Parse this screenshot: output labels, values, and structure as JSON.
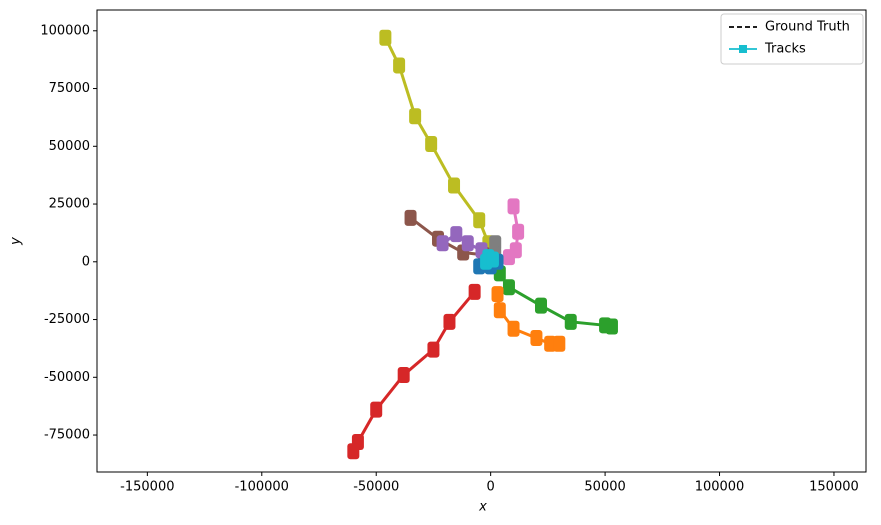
{
  "chart_data": {
    "type": "line",
    "xlabel": "x",
    "ylabel": "y",
    "xlim": [
      -172000,
      164000
    ],
    "ylim": [
      -91000,
      109000
    ],
    "xticks": [
      -150000,
      -100000,
      -50000,
      0,
      50000,
      100000,
      150000
    ],
    "yticks": [
      -75000,
      -50000,
      -25000,
      0,
      25000,
      50000,
      75000,
      100000
    ],
    "legend_position": "upper right",
    "legend": [
      {
        "name": "Ground Truth",
        "color": "#000000",
        "style": "dashed"
      },
      {
        "name": "Tracks",
        "color": "#17becf",
        "marker": "square"
      }
    ],
    "series": [
      {
        "color": "#bcbd22",
        "x": [
          -46000,
          -40000,
          -33000,
          -26000,
          -16000,
          -5000,
          -1000,
          0
        ],
        "values": [
          97000,
          85000,
          63000,
          51000,
          33000,
          18000,
          8000,
          0
        ]
      },
      {
        "color": "#d62728",
        "x": [
          -7000,
          -18000,
          -25000,
          -38000,
          -50000,
          -58000,
          -60000
        ],
        "values": [
          -13000,
          -26000,
          -38000,
          -49000,
          -64000,
          -78000,
          -82000
        ]
      },
      {
        "color": "#2ca02c",
        "x": [
          4000,
          8000,
          22000,
          35000,
          50000,
          53000
        ],
        "values": [
          -5000,
          -11000,
          -19000,
          -26000,
          -27500,
          -28000
        ]
      },
      {
        "color": "#ff7f0e",
        "x": [
          3000,
          4000,
          10000,
          20000,
          26000,
          30000
        ],
        "values": [
          -14000,
          -21000,
          -29000,
          -33000,
          -35500,
          -35500
        ]
      },
      {
        "color": "#e377c2",
        "x": [
          10000,
          12000,
          11000,
          8000
        ],
        "values": [
          24000,
          13000,
          5000,
          2000
        ]
      },
      {
        "color": "#8c564b",
        "x": [
          -35000,
          -23000,
          -12000,
          -3000
        ],
        "values": [
          19000,
          10000,
          4000,
          3000
        ]
      },
      {
        "color": "#9467bd",
        "x": [
          -21000,
          -15000,
          -10000,
          -4000
        ],
        "values": [
          8000,
          12000,
          8000,
          5000
        ]
      },
      {
        "color": "#7f7f7f",
        "x": [
          2000,
          2000,
          0
        ],
        "values": [
          8000,
          3000,
          1000
        ]
      },
      {
        "color": "#1f77b4",
        "x": [
          -5000,
          0,
          3000
        ],
        "values": [
          -2000,
          -2000,
          0
        ]
      },
      {
        "color": "#17becf",
        "x": [
          -2000,
          -1000,
          1000
        ],
        "values": [
          0,
          2000,
          1000
        ]
      }
    ]
  }
}
